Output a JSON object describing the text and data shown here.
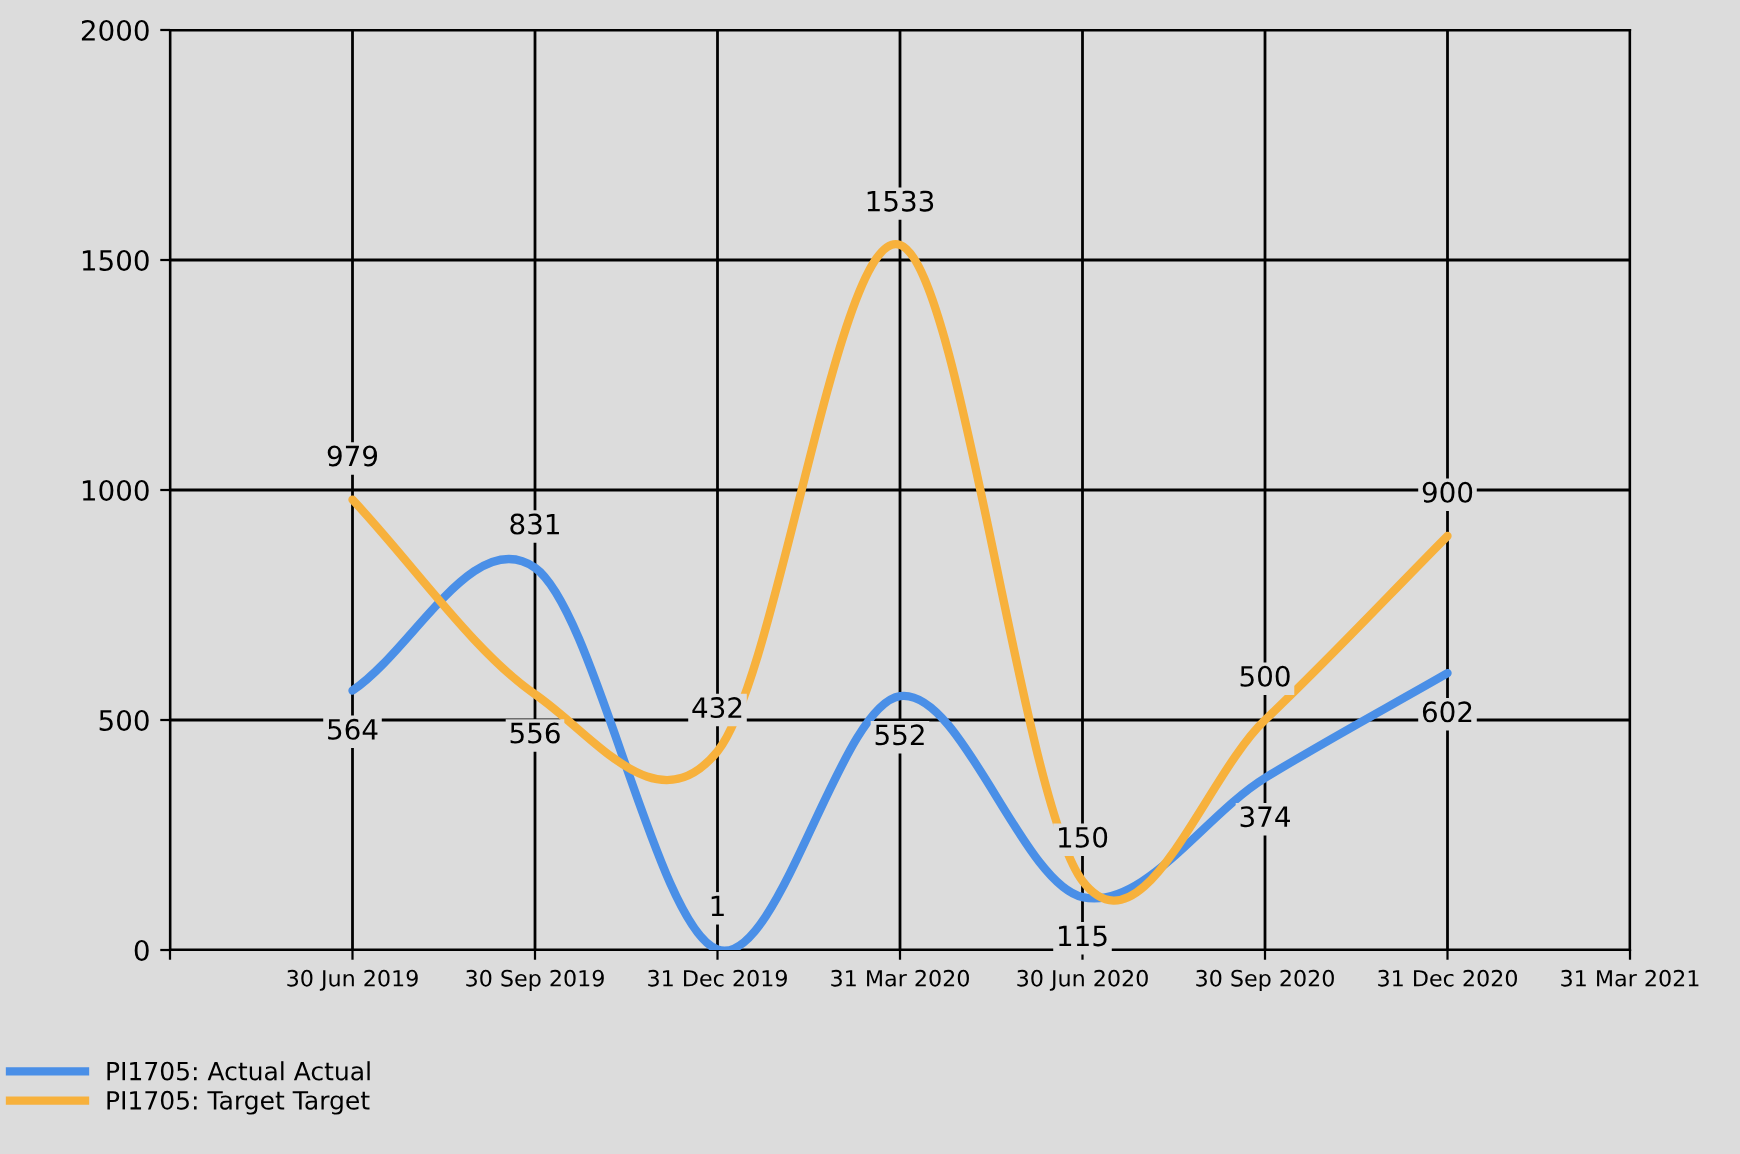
{
  "chart_data": {
    "type": "line",
    "categories": [
      null,
      "30 Jun 2019",
      "30 Sep 2019",
      "31 Dec 2019",
      "31 Mar 2020",
      "30 Jun 2020",
      "30 Sep 2020",
      "31 Dec 2020",
      "31 Mar 2021"
    ],
    "series": [
      {
        "name": "PI1705: Actual Actual",
        "color": "#4a8fe7",
        "values": [
          null,
          564,
          831,
          1,
          552,
          115,
          374,
          602,
          null
        ]
      },
      {
        "name": "PI1705: Target Target",
        "color": "#f7b13c",
        "values": [
          null,
          979,
          556,
          432,
          1533,
          150,
          500,
          900,
          null
        ]
      }
    ],
    "ylim": [
      0,
      2000
    ],
    "yticks": [
      0,
      500,
      1000,
      1500,
      2000
    ],
    "grid": true,
    "legend": "bottom left",
    "data_labels": true,
    "marker": "none",
    "line_style": "solid"
  }
}
